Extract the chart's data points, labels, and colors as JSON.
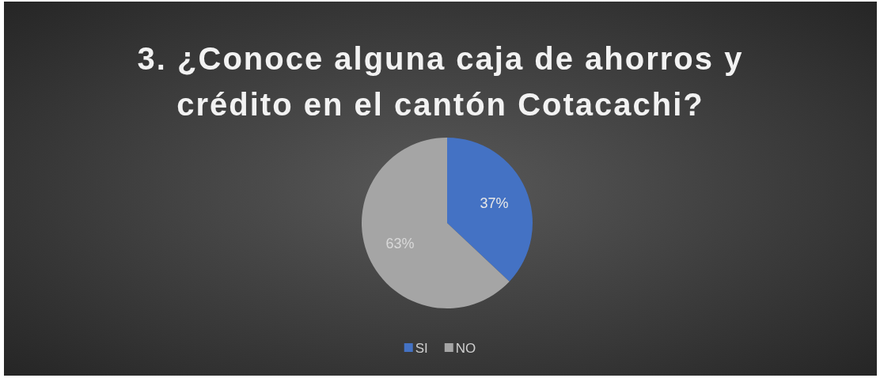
{
  "chart_data": {
    "type": "pie",
    "title": "3. ¿Conoce alguna caja de ahorros y crédito en el cantón Cotacachi?",
    "categories": [
      "SI",
      "NO"
    ],
    "values": [
      37,
      63
    ],
    "colors": [
      "#4472c4",
      "#a5a5a5"
    ],
    "value_labels": [
      "37%",
      "63%"
    ],
    "legend": "bottom"
  }
}
